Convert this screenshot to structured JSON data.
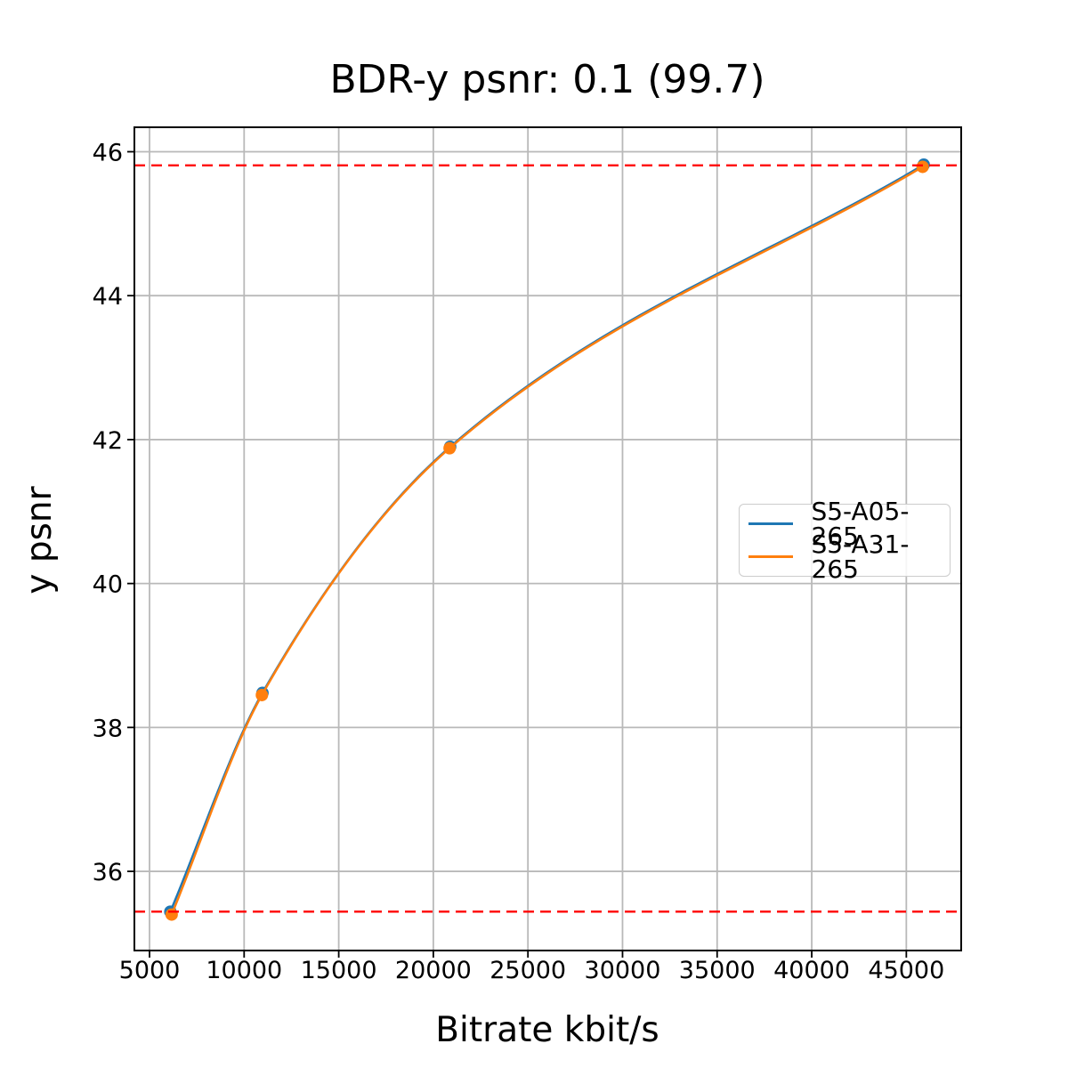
{
  "chart_data": {
    "type": "line",
    "title": "BDR-y psnr: 0.1 (99.7)",
    "xlabel": "Bitrate kbit/s",
    "ylabel": "y psnr",
    "xlim": [
      4200,
      47900
    ],
    "ylim": [
      34.9,
      46.34
    ],
    "xticks": [
      5000,
      10000,
      15000,
      20000,
      25000,
      30000,
      35000,
      40000,
      45000
    ],
    "yticks": [
      36,
      38,
      40,
      42,
      44,
      46
    ],
    "grid": true,
    "line_shape": "smooth",
    "marker": "circle",
    "legend_position": "center-right",
    "series": [
      {
        "name": "S5-A05-265",
        "color": "#1f77b4",
        "x": [
          6100,
          10970,
          20890,
          45920
        ],
        "y": [
          35.44,
          38.48,
          41.9,
          45.82
        ]
      },
      {
        "name": "S5-A31-265",
        "color": "#ff7f0e",
        "x": [
          6170,
          10940,
          20860,
          45860
        ],
        "y": [
          35.4,
          38.45,
          41.88,
          45.79
        ]
      }
    ],
    "hlines": {
      "values": [
        45.81,
        35.44
      ],
      "color": "#ff0000",
      "style": "dashed"
    }
  },
  "style": {
    "grid_color": "#b9b9b9",
    "spine_color": "#000000",
    "background": "#ffffff"
  }
}
